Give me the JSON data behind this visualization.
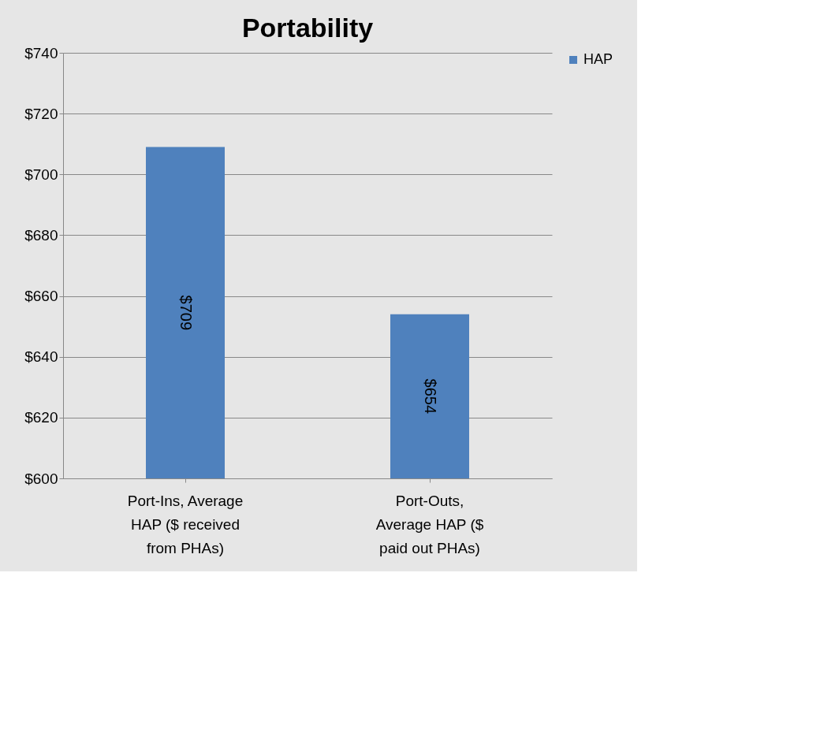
{
  "chart_data": {
    "type": "bar",
    "title": "Portability",
    "categories": [
      "Port-Ins, Average HAP ($ received from PHAs)",
      "Port-Outs, Average HAP ($ paid out PHAs)"
    ],
    "series": [
      {
        "name": "HAP",
        "color": "#4f81bd",
        "values": [
          709,
          654
        ],
        "value_labels": [
          "$709",
          "$654"
        ]
      }
    ],
    "ylim": [
      600,
      740
    ],
    "yticks": [
      {
        "value": 600,
        "label": "$600"
      },
      {
        "value": 620,
        "label": "$620"
      },
      {
        "value": 640,
        "label": "$640"
      },
      {
        "value": 660,
        "label": "$660"
      },
      {
        "value": 680,
        "label": "$680"
      },
      {
        "value": 700,
        "label": "$700"
      },
      {
        "value": 720,
        "label": "$720"
      },
      {
        "value": 740,
        "label": "$740"
      }
    ],
    "grid": "y",
    "legend": "right"
  }
}
